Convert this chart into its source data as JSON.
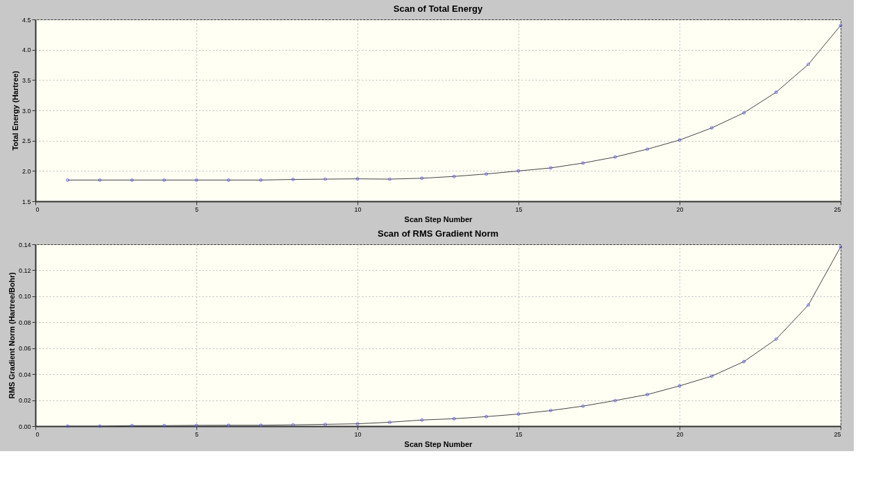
{
  "chart_data": [
    {
      "type": "line",
      "title": "Scan of Total Energy",
      "xlabel": "Scan Step Number",
      "ylabel": "Total Energy (Hartree)",
      "x": [
        1,
        2,
        3,
        4,
        5,
        6,
        7,
        8,
        9,
        10,
        11,
        12,
        13,
        14,
        15,
        16,
        17,
        18,
        19,
        20,
        21,
        22,
        23,
        24,
        25
      ],
      "series": [
        {
          "color": "#5555ee",
          "values": [
            1.85,
            1.85,
            1.85,
            1.85,
            1.85,
            1.85,
            1.85,
            1.86,
            1.865,
            1.87,
            1.865,
            1.88,
            1.91,
            1.95,
            2.0,
            2.05,
            2.13,
            2.23,
            2.36,
            2.51,
            2.71,
            2.96,
            3.3,
            3.76,
            4.4
          ]
        }
      ],
      "xlim": [
        0,
        25
      ],
      "xticks": [
        0,
        5,
        10,
        15,
        20,
        25
      ],
      "ylim": [
        1.5,
        4.5
      ],
      "yticks": [
        1.5,
        {
          "value": 2,
          "label": "2.0"
        },
        2.5,
        {
          "value": 3,
          "label": "3.0"
        },
        3.5,
        {
          "value": 4,
          "label": "4.0"
        },
        4.5
      ],
      "grid": true,
      "marker": "circle"
    },
    {
      "type": "line",
      "title": "Scan of RMS Gradient Norm",
      "xlabel": "Scan Step Number",
      "ylabel": "RMS Gradient Norm (Hartree/Bohr)",
      "x": [
        1,
        2,
        3,
        4,
        5,
        6,
        7,
        8,
        9,
        10,
        11,
        12,
        13,
        14,
        15,
        16,
        17,
        18,
        19,
        20,
        21,
        22,
        23,
        24,
        25
      ],
      "series": [
        {
          "color": "#5555ee",
          "values": [
            0.0,
            0.0,
            0.0004,
            0.0004,
            0.0006,
            0.0007,
            0.0007,
            0.001,
            0.0014,
            0.0018,
            0.003,
            0.0047,
            0.0057,
            0.0073,
            0.0093,
            0.012,
            0.0154,
            0.0197,
            0.0243,
            0.031,
            0.0385,
            0.0497,
            0.067,
            0.0933,
            0.138
          ]
        }
      ],
      "xlim": [
        0,
        25
      ],
      "xticks": [
        0,
        5,
        10,
        15,
        20,
        25
      ],
      "ylim": [
        0.0,
        0.14
      ],
      "yticks": [
        {
          "value": 0,
          "label": "0.00"
        },
        {
          "value": 0.02,
          "label": "0.02"
        },
        {
          "value": 0.04,
          "label": "0.04"
        },
        {
          "value": 0.06,
          "label": "0.06"
        },
        {
          "value": 0.08,
          "label": "0.08"
        },
        {
          "value": 0.1,
          "label": "0.10"
        },
        {
          "value": 0.12,
          "label": "0.12"
        },
        {
          "value": 0.14,
          "label": "0.14"
        }
      ],
      "grid": true,
      "marker": "circle"
    }
  ]
}
